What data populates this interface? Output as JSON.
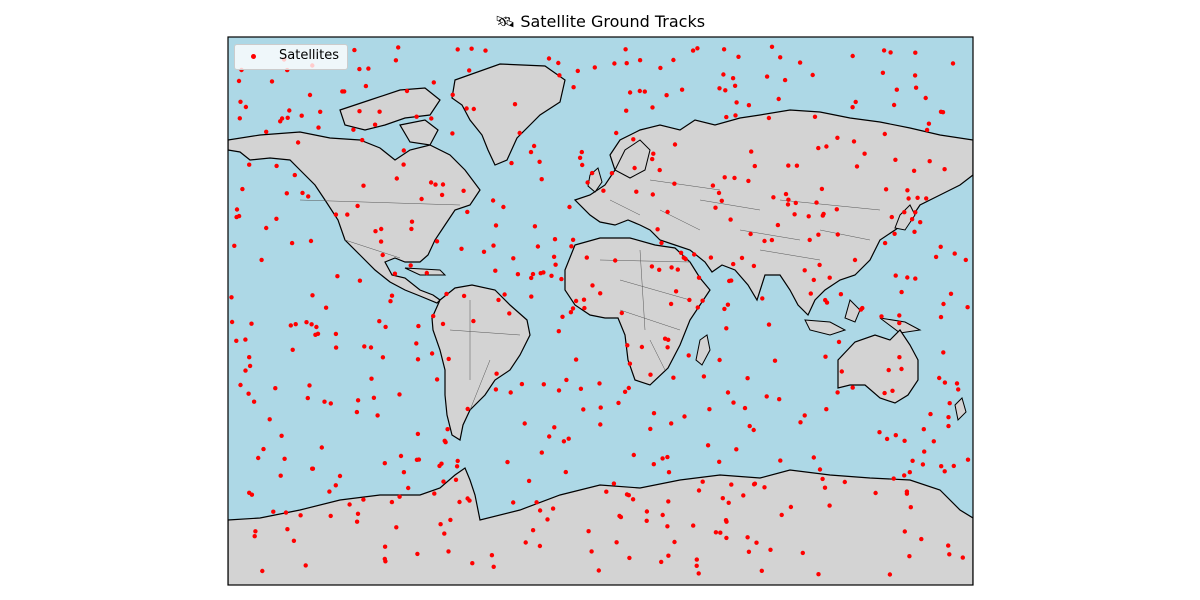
{
  "title": "🛰 Satellite Ground Tracks",
  "legend": {
    "label": "Satellites"
  },
  "colors": {
    "ocean": "#add8e6",
    "land": "#d3d3d3",
    "coast": "#000000",
    "borders": "#555555",
    "satellite": "#ff0000"
  },
  "map": {
    "projection": "PlateCarree",
    "lon_range": [
      -180,
      180
    ],
    "lat_range": [
      -90,
      90
    ]
  },
  "satellite_count": 600
}
